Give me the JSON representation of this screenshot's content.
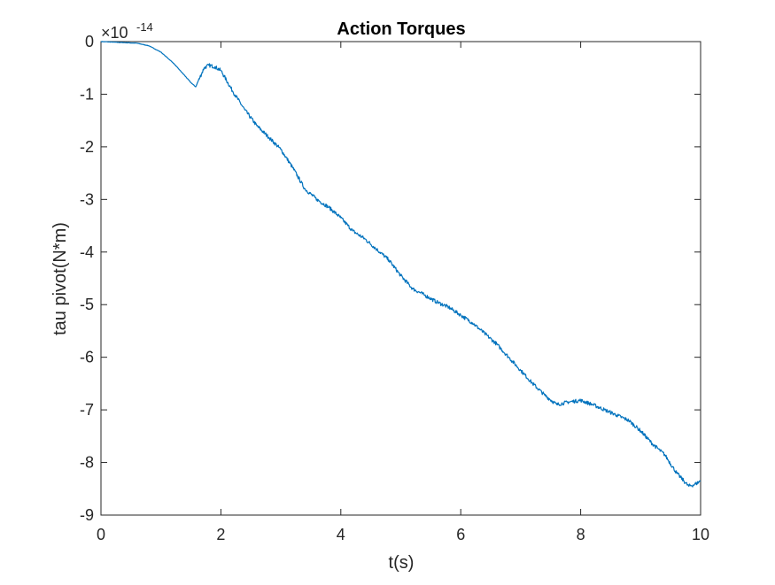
{
  "chart_data": {
    "type": "line",
    "title": "Action Torques",
    "xlabel": "t(s)",
    "ylabel": "tau pivot(N*m)",
    "y_exponent_base": "×10",
    "y_exponent_power": "-14",
    "xlim": [
      0,
      10
    ],
    "ylim": [
      -9,
      0
    ],
    "x_ticks": [
      0,
      2,
      4,
      6,
      8,
      10
    ],
    "y_ticks": [
      0,
      -1,
      -2,
      -3,
      -4,
      -5,
      -6,
      -7,
      -8,
      -9
    ],
    "x_tick_labels": [
      "0",
      "2",
      "4",
      "6",
      "8",
      "10"
    ],
    "y_tick_labels": [
      "0",
      "-1",
      "-2",
      "-3",
      "-4",
      "-5",
      "-6",
      "-7",
      "-8",
      "-9"
    ],
    "grid": false,
    "box": true,
    "series": [
      {
        "color": "#0072BD",
        "x": [
          0,
          0.2,
          0.4,
          0.6,
          0.8,
          1.0,
          1.2,
          1.4,
          1.5,
          1.58,
          1.65,
          1.72,
          1.8,
          1.9,
          2.0,
          2.2,
          2.4,
          2.6,
          2.8,
          3.0,
          3.2,
          3.4,
          3.6,
          3.8,
          4.0,
          4.2,
          4.4,
          4.6,
          4.8,
          5.0,
          5.2,
          5.4,
          5.6,
          5.8,
          6.0,
          6.2,
          6.4,
          6.6,
          6.8,
          7.0,
          7.2,
          7.4,
          7.6,
          7.8,
          8.0,
          8.2,
          8.4,
          8.6,
          8.8,
          9.0,
          9.2,
          9.4,
          9.6,
          9.8,
          9.9,
          10.0
        ],
        "y": [
          0,
          -0.01,
          -0.02,
          -0.03,
          -0.08,
          -0.2,
          -0.4,
          -0.65,
          -0.78,
          -0.86,
          -0.68,
          -0.5,
          -0.45,
          -0.48,
          -0.55,
          -0.95,
          -1.3,
          -1.6,
          -1.82,
          -2.05,
          -2.4,
          -2.8,
          -3.0,
          -3.15,
          -3.35,
          -3.6,
          -3.75,
          -3.95,
          -4.15,
          -4.45,
          -4.7,
          -4.82,
          -4.95,
          -5.05,
          -5.2,
          -5.35,
          -5.55,
          -5.75,
          -6.0,
          -6.25,
          -6.5,
          -6.72,
          -6.9,
          -6.85,
          -6.82,
          -6.9,
          -7.0,
          -7.1,
          -7.2,
          -7.4,
          -7.65,
          -7.85,
          -8.2,
          -8.45,
          -8.42,
          -8.35
        ]
      }
    ]
  }
}
